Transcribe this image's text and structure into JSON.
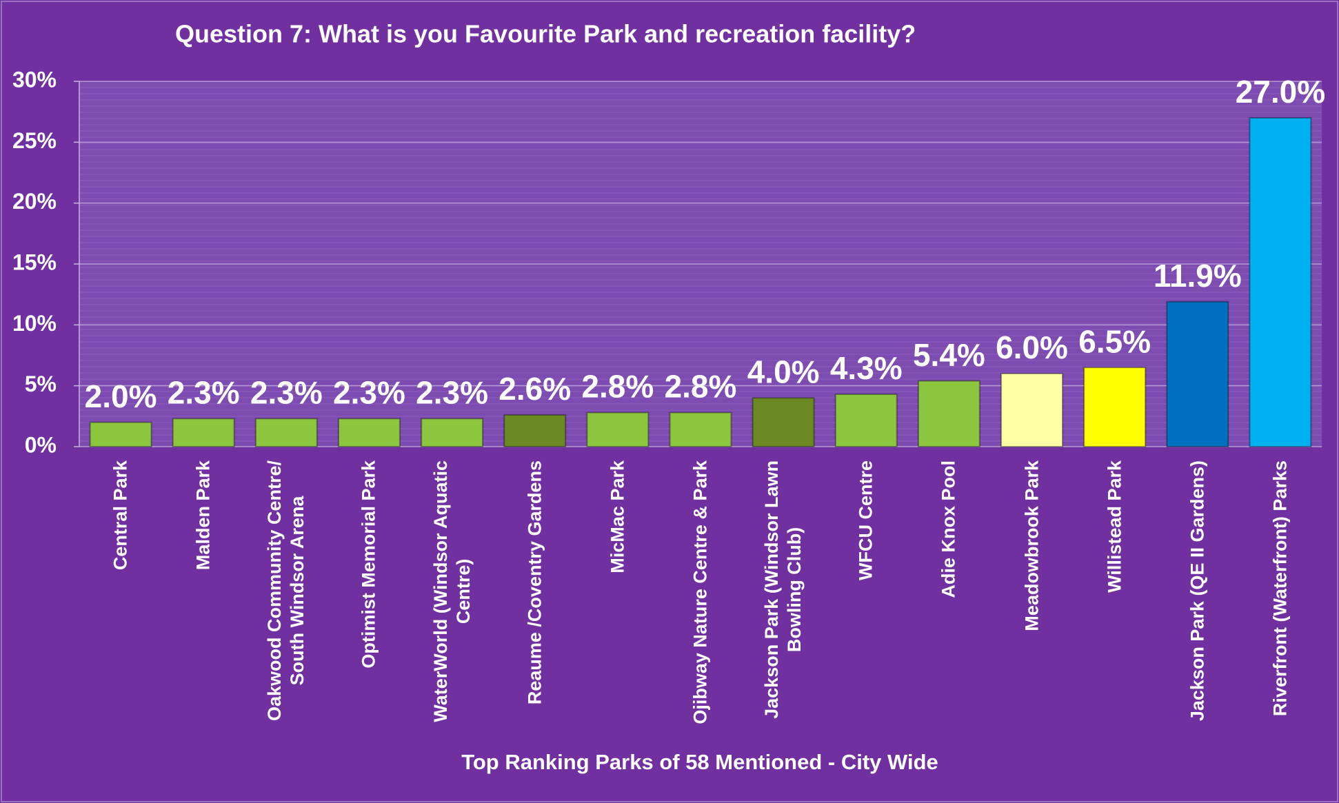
{
  "chart_data": {
    "type": "bar",
    "title": "Question 7: What is you Favourite Park and recreation facility?",
    "x_label": "Top Ranking Parks of 58 Mentioned - City Wide",
    "categories": [
      "Central Park",
      "Malden Park",
      "Oakwood Community Centre/\nSouth Windsor Arena",
      "Optimist Memorial Park",
      "WaterWorld (Windsor Aquatic\nCentre)",
      "Reaume /Coventry Gardens",
      "MicMac Park",
      "Ojibway Nature Centre & Park",
      "Jackson Park (Windsor Lawn\nBowling Club)",
      "WFCU Centre",
      "Adie Knox Pool",
      "Meadowbrook Park",
      "Willistead Park",
      "Jackson Park (QE II Gardens)",
      "Riverfront (Waterfront) Parks"
    ],
    "values": [
      2.0,
      2.3,
      2.3,
      2.3,
      2.3,
      2.6,
      2.8,
      2.8,
      4.0,
      4.3,
      5.4,
      6.0,
      6.5,
      11.9,
      27.0
    ],
    "value_labels": [
      "2.0%",
      "2.3%",
      "2.3%",
      "2.3%",
      "2.3%",
      "2.6%",
      "2.8%",
      "2.8%",
      "4.0%",
      "4.3%",
      "5.4%",
      "6.0%",
      "6.5%",
      "11.9%",
      "27.0%"
    ],
    "colors": [
      "#8cc63f",
      "#8cc63f",
      "#8cc63f",
      "#8cc63f",
      "#8cc63f",
      "#6b8a23",
      "#8cc63f",
      "#8cc63f",
      "#6b8a23",
      "#8cc63f",
      "#8cc63f",
      "#ffffa6",
      "#ffff00",
      "#0070c0",
      "#00b0f0"
    ],
    "ylim": [
      0,
      30
    ],
    "yticks": [
      {
        "value": 0,
        "label": "0%"
      },
      {
        "value": 5,
        "label": "5%"
      },
      {
        "value": 10,
        "label": "10%"
      },
      {
        "value": 15,
        "label": "15%"
      },
      {
        "value": 20,
        "label": "20%"
      },
      {
        "value": 25,
        "label": "25%"
      },
      {
        "value": 30,
        "label": "30%"
      }
    ],
    "grid": true
  }
}
